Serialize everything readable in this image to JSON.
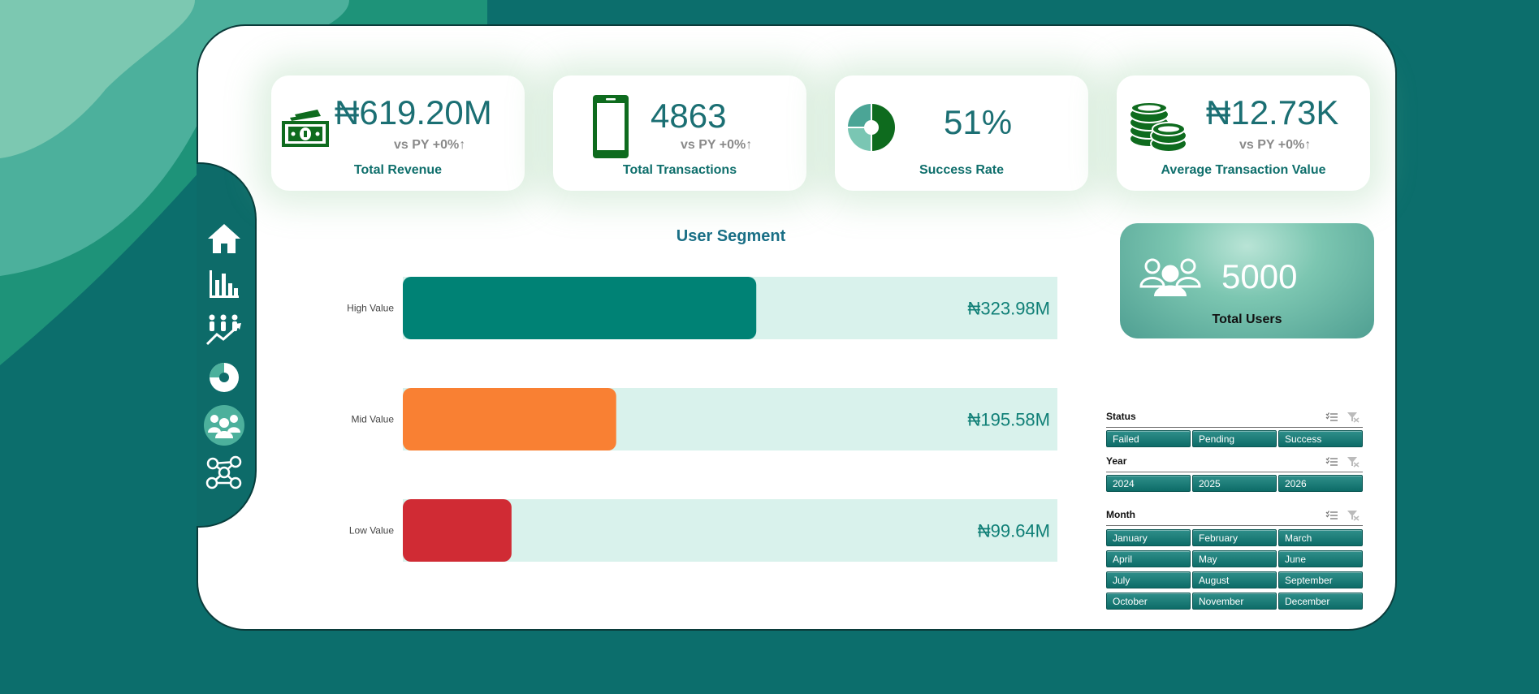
{
  "kpis": [
    {
      "value": "₦619.20M",
      "vs_label": "vs PY",
      "vs_change": "+0%↑",
      "label": "Total Revenue",
      "icon": "cash-icon"
    },
    {
      "value": "4863",
      "vs_label": "vs PY",
      "vs_change": "+0%↑",
      "label": "Total Transactions",
      "icon": "smartphone-icon"
    },
    {
      "value": "51%",
      "label": "Success Rate",
      "icon": "pie-icon"
    },
    {
      "value": "₦12.73K",
      "vs_label": "vs PY",
      "vs_change": "+0%↑",
      "label": "Average Transaction Value",
      "icon": "coins-icon"
    }
  ],
  "users": {
    "value": "5000",
    "label": "Total Users",
    "icon": "users-icon"
  },
  "nav": [
    {
      "icon": "home-icon",
      "active": false
    },
    {
      "icon": "bar-chart-icon",
      "active": false
    },
    {
      "icon": "people-trend-icon",
      "active": false
    },
    {
      "icon": "donut-icon",
      "active": false
    },
    {
      "icon": "users-icon",
      "active": true
    },
    {
      "icon": "network-icon",
      "active": false
    }
  ],
  "chart_data": {
    "type": "bar",
    "orientation": "horizontal",
    "title": "User Segment",
    "categories": [
      "High Value",
      "Mid Value",
      "Low Value"
    ],
    "values": [
      323.98,
      195.58,
      99.64
    ],
    "data_labels": [
      "₦323.98M",
      "₦195.58M",
      "₦99.64M"
    ],
    "unit": "₦M",
    "xlim": [
      0,
      600
    ],
    "colors": [
      "#008275",
      "#f98033",
      "#d02b34"
    ],
    "track_color": "#d9f2ec",
    "grid": false,
    "legend": "none"
  },
  "slicers": [
    {
      "title": "Status",
      "options": [
        "Failed",
        "Pending",
        "Success"
      ]
    },
    {
      "title": "Year",
      "options": [
        "2024",
        "2025",
        "2026"
      ]
    },
    {
      "title": "Month",
      "options": [
        "January",
        "February",
        "March",
        "April",
        "May",
        "June",
        "July",
        "August",
        "September",
        "October",
        "November",
        "December"
      ]
    }
  ],
  "colors": {
    "background": "#0c6e6c",
    "accent": "#0f6f6c",
    "icon_green": "#0e6b1e",
    "nav": "#0d6b69"
  }
}
